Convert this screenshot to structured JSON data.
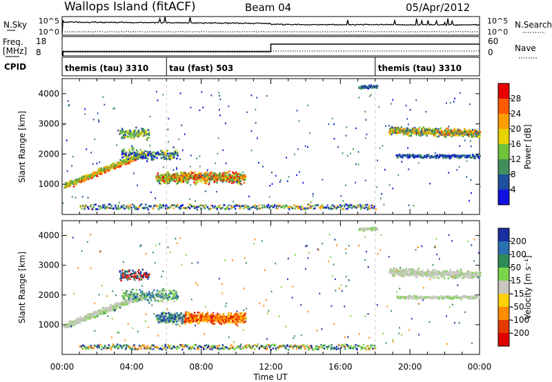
{
  "header": {
    "station": "Wallops Island (fitACF)",
    "beam": "Beam 04",
    "date": "05/Apr/2012"
  },
  "panels": {
    "nsky_label": "N.Sky",
    "nsky_ticks": [
      "10^5",
      "10^0"
    ],
    "nsearch_label": "N.Search",
    "nsearch_ticks": [
      "10^5",
      "10^0"
    ],
    "freq_label_top": "Freq.",
    "freq_label_unit": "[MHz]",
    "freq_ticks": [
      "18",
      "8"
    ],
    "nave_label": "Nave",
    "nave_ticks": [
      "60",
      "0"
    ],
    "cpid_label": "CPID"
  },
  "cpid_segments": [
    {
      "label": "themis (tau) 3310",
      "start_hour": 0
    },
    {
      "label": "tau (fast) 503",
      "start_hour": 6
    },
    {
      "label": "themis (tau) 3310",
      "start_hour": 18
    }
  ],
  "chart_data": [
    {
      "type": "heatmap",
      "name": "power",
      "xlabel": "",
      "ylabel": "Slant Range [km]",
      "xlim_hours": [
        0,
        24
      ],
      "ylim": [
        0,
        4500
      ],
      "yticks": [
        "1000",
        "2000",
        "3000",
        "4000"
      ],
      "colorbar_label": "Power [dB]",
      "colorbar_ticks": [
        "28",
        "24",
        "20",
        "16",
        "12",
        "8",
        "4"
      ],
      "colors": [
        "#e60000",
        "#ff5a00",
        "#ff9e00",
        "#e8d200",
        "#6fc23a",
        "#3f8f5e",
        "#1f4f9e",
        "#1010e0"
      ]
    },
    {
      "type": "heatmap",
      "name": "velocity",
      "xlabel": "Time UT",
      "ylabel": "Slant Range [km]",
      "xlim_hours": [
        0,
        24
      ],
      "ylim": [
        0,
        4500
      ],
      "yticks": [
        "1000",
        "2000",
        "3000",
        "4000"
      ],
      "xticks": [
        "00:00",
        "04:00",
        "08:00",
        "12:00",
        "16:00",
        "20:00",
        "00:00"
      ],
      "colorbar_label": "Velocity [m s⁻¹]",
      "colorbar_ticks": [
        "200",
        "100",
        "50",
        "15",
        "-15",
        "-50",
        "-100",
        "-200"
      ],
      "colors": [
        "#1a2fa0",
        "#2a6fb0",
        "#2e8b57",
        "#7bd44a",
        "#c8c8c0",
        "#ffd000",
        "#ff8c00",
        "#e63b00",
        "#e00000"
      ]
    }
  ]
}
